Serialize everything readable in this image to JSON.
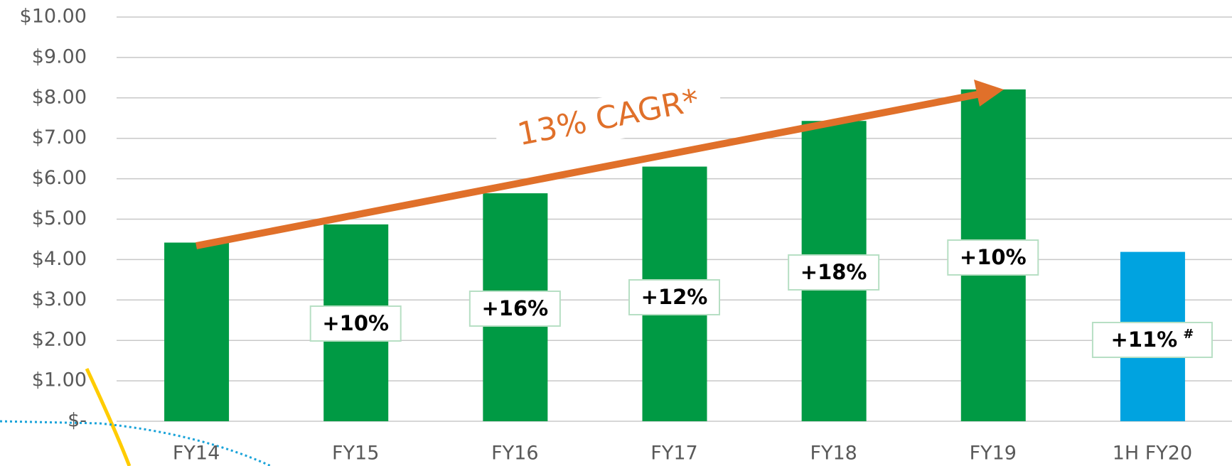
{
  "chart_data": {
    "type": "bar",
    "categories": [
      "FY14",
      "FY15",
      "FY16",
      "FY17",
      "FY18",
      "FY19",
      "1H FY20"
    ],
    "values": [
      4.42,
      4.87,
      5.64,
      6.3,
      7.43,
      8.21,
      4.19
    ],
    "colors": [
      "#009a44",
      "#009a44",
      "#009a44",
      "#009a44",
      "#009a44",
      "#009a44",
      "#00a3e0"
    ],
    "growth_labels": [
      null,
      "+10%",
      "+16%",
      "+12%",
      "+18%",
      "+10%",
      "+11%"
    ],
    "growth_note": "#",
    "annotation": "13% CAGR*",
    "ylim": [
      0,
      10
    ],
    "yticks": [
      {
        "value": 0,
        "label": "$-"
      },
      {
        "value": 1,
        "label": "$1.00"
      },
      {
        "value": 2,
        "label": "$2.00"
      },
      {
        "value": 3,
        "label": "$3.00"
      },
      {
        "value": 4,
        "label": "$4.00"
      },
      {
        "value": 5,
        "label": "$5.00"
      },
      {
        "value": 6,
        "label": "$6.00"
      },
      {
        "value": 7,
        "label": "$7.00"
      },
      {
        "value": 8,
        "label": "$8.00"
      },
      {
        "value": 9,
        "label": "$9.00"
      },
      {
        "value": 10,
        "label": "$10.00"
      }
    ],
    "grid": true
  }
}
